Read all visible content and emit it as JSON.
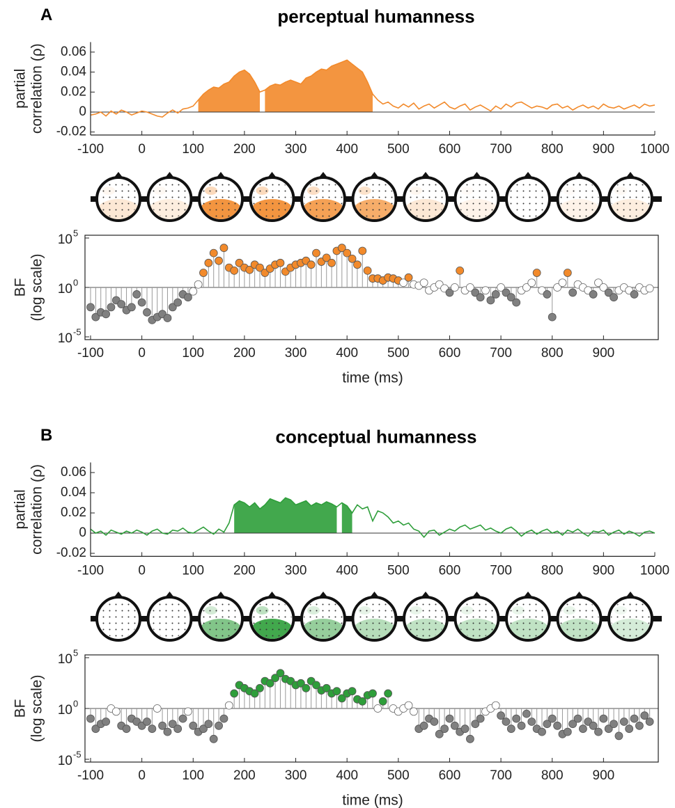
{
  "chart_data": [
    {
      "type": "line",
      "panel_label": "A",
      "title": "perceptual humanness",
      "ylabel": [
        "partial",
        "correlation (ρ)"
      ],
      "color": "#f28a2b",
      "x": [
        -100,
        -90,
        -80,
        -70,
        -60,
        -50,
        -40,
        -30,
        -20,
        -10,
        0,
        10,
        20,
        30,
        40,
        50,
        60,
        70,
        80,
        90,
        100,
        110,
        120,
        130,
        140,
        150,
        160,
        170,
        180,
        190,
        200,
        210,
        220,
        230,
        240,
        250,
        260,
        270,
        280,
        290,
        300,
        310,
        320,
        330,
        340,
        350,
        360,
        370,
        380,
        390,
        400,
        410,
        420,
        430,
        440,
        450,
        460,
        470,
        480,
        490,
        500,
        510,
        520,
        530,
        540,
        550,
        560,
        570,
        580,
        590,
        600,
        610,
        620,
        630,
        640,
        650,
        660,
        670,
        680,
        690,
        700,
        710,
        720,
        730,
        740,
        750,
        760,
        770,
        780,
        790,
        800,
        810,
        820,
        830,
        840,
        850,
        860,
        870,
        880,
        890,
        900,
        910,
        920,
        930,
        940,
        950,
        960,
        970,
        980,
        990,
        1000
      ],
      "values": [
        -0.003,
        -0.002,
        0.0,
        -0.004,
        0.001,
        -0.002,
        0.002,
        0.0,
        -0.003,
        -0.001,
        0.001,
        0.0,
        -0.002,
        -0.004,
        -0.005,
        -0.001,
        0.002,
        -0.001,
        0.003,
        0.004,
        0.006,
        0.012,
        0.018,
        0.022,
        0.025,
        0.024,
        0.028,
        0.03,
        0.036,
        0.04,
        0.042,
        0.038,
        0.03,
        0.02,
        0.022,
        0.026,
        0.028,
        0.027,
        0.03,
        0.032,
        0.03,
        0.028,
        0.034,
        0.036,
        0.04,
        0.043,
        0.042,
        0.046,
        0.048,
        0.05,
        0.052,
        0.048,
        0.044,
        0.04,
        0.03,
        0.018,
        0.012,
        0.008,
        0.01,
        0.006,
        0.004,
        0.008,
        0.005,
        0.009,
        0.003,
        0.006,
        0.008,
        0.004,
        0.007,
        0.01,
        0.005,
        0.003,
        0.006,
        0.008,
        0.002,
        0.005,
        0.007,
        0.004,
        0.001,
        0.006,
        0.003,
        0.008,
        0.005,
        0.009,
        0.01,
        0.007,
        0.004,
        0.006,
        0.005,
        0.003,
        0.007,
        0.008,
        0.004,
        0.006,
        0.002,
        0.005,
        0.007,
        0.004,
        0.006,
        0.003,
        0.008,
        0.005,
        0.004,
        0.006,
        0.003,
        0.005,
        0.007,
        0.004,
        0.008,
        0.006,
        0.007
      ],
      "significant": [
        [
          110,
          230
        ],
        [
          240,
          450
        ]
      ],
      "xlim": [
        -100,
        1000
      ],
      "xticks": [
        -100,
        0,
        100,
        200,
        300,
        400,
        500,
        600,
        700,
        800,
        900,
        1000
      ],
      "ylim": [
        -0.023,
        0.07
      ],
      "yticks": [
        -0.02,
        0,
        0.02,
        0.04,
        0.06
      ]
    },
    {
      "type": "stem",
      "ylabel": [
        "BF",
        "(log scale)"
      ],
      "xlabel": "time (ms)",
      "log_y": true,
      "high_threshold": 3,
      "low_threshold": 0.333,
      "high_color": "#f28a2b",
      "mid_color": "#ffffff",
      "low_color": "#808080",
      "x": [
        -100,
        -90,
        -80,
        -70,
        -60,
        -50,
        -40,
        -30,
        -20,
        -10,
        0,
        10,
        20,
        30,
        40,
        50,
        60,
        70,
        80,
        90,
        100,
        110,
        120,
        130,
        140,
        150,
        160,
        170,
        180,
        190,
        200,
        210,
        220,
        230,
        240,
        250,
        260,
        270,
        280,
        290,
        300,
        310,
        320,
        330,
        340,
        350,
        360,
        370,
        380,
        390,
        400,
        410,
        420,
        430,
        440,
        450,
        460,
        470,
        480,
        490,
        500,
        510,
        520,
        530,
        540,
        550,
        560,
        570,
        580,
        590,
        600,
        610,
        620,
        630,
        640,
        650,
        660,
        670,
        680,
        690,
        700,
        710,
        720,
        730,
        740,
        750,
        760,
        770,
        780,
        790,
        800,
        810,
        820,
        830,
        840,
        850,
        860,
        870,
        880,
        890,
        900,
        910,
        920,
        930,
        940,
        950,
        960,
        970,
        980,
        990
      ],
      "values": [
        0.01,
        0.001,
        0.003,
        0.002,
        0.01,
        0.05,
        0.02,
        0.005,
        0.01,
        0.2,
        0.03,
        0.003,
        0.0005,
        0.001,
        0.002,
        0.0008,
        0.01,
        0.03,
        0.2,
        0.1,
        0.4,
        2,
        30,
        300,
        3000,
        500,
        10000,
        100,
        50,
        300,
        100,
        60,
        200,
        100,
        30,
        80,
        200,
        300,
        40,
        100,
        200,
        300,
        500,
        200,
        3000,
        400,
        1000,
        300,
        5000,
        10000,
        3000,
        800,
        200,
        5000,
        50,
        8,
        8,
        5,
        10,
        8,
        5,
        3,
        10,
        2,
        1.5,
        3,
        0.5,
        1,
        2,
        0.8,
        0.3,
        1,
        50,
        0.5,
        1,
        0.3,
        0.1,
        0.5,
        0.05,
        0.2,
        1,
        0.3,
        0.1,
        0.03,
        0.5,
        1,
        3,
        30,
        0.5,
        0.2,
        0.001,
        1,
        3,
        30,
        0.3,
        2,
        1,
        0.5,
        0.2,
        3,
        1,
        0.3,
        0.1,
        0.5,
        1,
        0.5,
        0.2,
        1,
        0.5,
        0.8
      ],
      "xlim": [
        -100,
        1000
      ],
      "xticks": [
        -100,
        0,
        100,
        200,
        300,
        400,
        500,
        600,
        700,
        800,
        900
      ],
      "ylim": [
        1e-05,
        100000
      ],
      "yticks": [
        {
          "value": 1e-05,
          "label": "10",
          "exponent": "-5"
        },
        {
          "value": 1,
          "label": "10",
          "exponent": "0"
        },
        {
          "value": 100000,
          "label": "10",
          "exponent": "5"
        }
      ]
    },
    {
      "type": "line",
      "panel_label": "B",
      "title": "conceptual humanness",
      "ylabel": [
        "partial",
        "correlation (ρ)"
      ],
      "color": "#2e9e3a",
      "x": [
        -100,
        -90,
        -80,
        -70,
        -60,
        -50,
        -40,
        -30,
        -20,
        -10,
        0,
        10,
        20,
        30,
        40,
        50,
        60,
        70,
        80,
        90,
        100,
        110,
        120,
        130,
        140,
        150,
        160,
        170,
        180,
        190,
        200,
        210,
        220,
        230,
        240,
        250,
        260,
        270,
        280,
        290,
        300,
        310,
        320,
        330,
        340,
        350,
        360,
        370,
        380,
        390,
        400,
        410,
        420,
        430,
        440,
        450,
        460,
        470,
        480,
        490,
        500,
        510,
        520,
        530,
        540,
        550,
        560,
        570,
        580,
        590,
        600,
        610,
        620,
        630,
        640,
        650,
        660,
        670,
        680,
        690,
        700,
        710,
        720,
        730,
        740,
        750,
        760,
        770,
        780,
        790,
        800,
        810,
        820,
        830,
        840,
        850,
        860,
        870,
        880,
        890,
        900,
        910,
        920,
        930,
        940,
        950,
        960,
        970,
        980,
        990,
        1000
      ],
      "values": [
        0.004,
        0.0,
        0.002,
        -0.002,
        0.003,
        0.001,
        -0.001,
        0.002,
        0.0,
        0.003,
        0.001,
        -0.002,
        0.002,
        0.004,
        0.0,
        -0.001,
        0.003,
        0.002,
        0.005,
        0.001,
        0.0,
        0.003,
        0.006,
        0.002,
        -0.001,
        0.004,
        0.001,
        0.01,
        0.028,
        0.032,
        0.03,
        0.026,
        0.03,
        0.024,
        0.028,
        0.034,
        0.032,
        0.03,
        0.035,
        0.033,
        0.028,
        0.03,
        0.032,
        0.027,
        0.03,
        0.028,
        0.031,
        0.029,
        0.026,
        0.03,
        0.027,
        0.02,
        0.028,
        0.024,
        0.026,
        0.012,
        0.022,
        0.02,
        0.016,
        0.01,
        0.012,
        0.008,
        0.01,
        0.004,
        0.002,
        -0.004,
        0.002,
        0.003,
        -0.002,
        0.001,
        0.004,
        0.002,
        0.006,
        0.008,
        0.004,
        0.006,
        0.008,
        0.003,
        0.005,
        0.002,
        0.0,
        0.004,
        0.006,
        0.002,
        -0.003,
        0.001,
        0.003,
        -0.001,
        0.002,
        0.004,
        0.0,
        0.002,
        -0.002,
        0.003,
        0.001,
        0.004,
        0.0,
        -0.003,
        0.002,
        0.001,
        0.003,
        -0.002,
        0.001,
        0.003,
        -0.001,
        0.002,
        0.0,
        -0.003,
        0.001,
        0.002,
        0.0
      ],
      "significant": [
        [
          180,
          380
        ],
        [
          390,
          410
        ]
      ],
      "xlim": [
        -100,
        1000
      ],
      "xticks": [
        -100,
        0,
        100,
        200,
        300,
        400,
        500,
        600,
        700,
        800,
        900,
        1000
      ],
      "ylim": [
        -0.023,
        0.07
      ],
      "yticks": [
        -0.02,
        0,
        0.02,
        0.04,
        0.06
      ]
    },
    {
      "type": "stem",
      "ylabel": [
        "BF",
        "(log scale)"
      ],
      "xlabel": "time (ms)",
      "log_y": true,
      "high_threshold": 3,
      "low_threshold": 0.333,
      "high_color": "#2e9e3a",
      "mid_color": "#ffffff",
      "low_color": "#808080",
      "x": [
        -100,
        -90,
        -80,
        -70,
        -60,
        -50,
        -40,
        -30,
        -20,
        -10,
        0,
        10,
        20,
        30,
        40,
        50,
        60,
        70,
        80,
        90,
        100,
        110,
        120,
        130,
        140,
        150,
        160,
        170,
        180,
        190,
        200,
        210,
        220,
        230,
        240,
        250,
        260,
        270,
        280,
        290,
        300,
        310,
        320,
        330,
        340,
        350,
        360,
        370,
        380,
        390,
        400,
        410,
        420,
        430,
        440,
        450,
        460,
        470,
        480,
        490,
        500,
        510,
        520,
        530,
        540,
        550,
        560,
        570,
        580,
        590,
        600,
        610,
        620,
        630,
        640,
        650,
        660,
        670,
        680,
        690,
        700,
        710,
        720,
        730,
        740,
        750,
        760,
        770,
        780,
        790,
        800,
        810,
        820,
        830,
        840,
        850,
        860,
        870,
        880,
        890,
        900,
        910,
        920,
        930,
        940,
        950,
        960,
        970,
        980,
        990
      ],
      "values": [
        0.1,
        0.01,
        0.03,
        0.05,
        1,
        0.5,
        0.02,
        0.01,
        0.1,
        0.05,
        0.02,
        0.05,
        0.01,
        1,
        0.02,
        0.005,
        0.03,
        0.01,
        0.1,
        0.5,
        0.02,
        0.005,
        0.01,
        0.03,
        0.001,
        0.02,
        0.1,
        2,
        30,
        200,
        100,
        50,
        30,
        100,
        500,
        300,
        1000,
        3000,
        800,
        500,
        200,
        300,
        100,
        500,
        200,
        60,
        100,
        30,
        50,
        10,
        30,
        50,
        8,
        5,
        20,
        30,
        1,
        5,
        30,
        1,
        0.5,
        1,
        2,
        0.5,
        0.01,
        0.02,
        0.1,
        0.05,
        0.003,
        0.01,
        0.1,
        0.02,
        0.005,
        0.01,
        0.001,
        0.03,
        0.1,
        0.5,
        1,
        2,
        0.2,
        0.05,
        0.01,
        0.1,
        0.02,
        0.3,
        0.05,
        0.01,
        0.005,
        0.03,
        0.1,
        0.02,
        0.003,
        0.005,
        0.03,
        0.1,
        0.01,
        0.05,
        0.02,
        0.005,
        0.1,
        0.01,
        0.03,
        0.002,
        0.05,
        0.01,
        0.1,
        0.02,
        0.2,
        0.05
      ],
      "xlim": [
        -100,
        1000
      ],
      "xticks": [
        -100,
        0,
        100,
        200,
        300,
        400,
        500,
        600,
        700,
        800,
        900
      ],
      "ylim": [
        1e-05,
        100000
      ],
      "yticks": [
        {
          "value": 1e-05,
          "label": "10",
          "exponent": "-5"
        },
        {
          "value": 1,
          "label": "10",
          "exponent": "0"
        },
        {
          "value": 100000,
          "label": "10",
          "exponent": "5"
        }
      ]
    }
  ]
}
